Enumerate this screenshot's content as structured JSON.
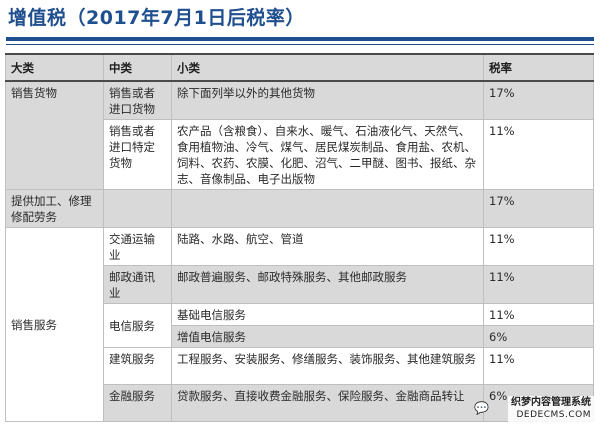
{
  "title": "增值税（2017年7月1日后税率）",
  "table": {
    "headers": [
      "大类",
      "中类",
      "小类",
      "税率"
    ],
    "rows": [
      {
        "major": "销售货物",
        "minor": "销售或者进口货物",
        "sub": "除下面列举以外的其他货物",
        "rate": "17%"
      },
      {
        "minor": "销售或者进口特定货物",
        "sub": "农产品（含粮食）、自来水、暖气、石油液化气、天然气、食用植物油、冷气、煤气、居民煤炭制品、食用盐、农机、饲料、农药、农膜、化肥、沼气、二甲醚、图书、报纸、杂志、音像制品、电子出版物",
        "rate": "11%"
      },
      {
        "major": "提供加工、修理修配劳务",
        "minor": "",
        "sub": "",
        "rate": "17%"
      },
      {
        "major": "销售服务",
        "minor": "交通运输业",
        "sub": "陆路、水路、航空、管道",
        "rate": "11%"
      },
      {
        "minor": "邮政通讯业",
        "sub": "邮政普遍服务、邮政特殊服务、其他邮政服务",
        "rate": "11%"
      },
      {
        "minor": "电信服务",
        "sub": "基础电信服务",
        "rate": "11%"
      },
      {
        "sub": "增值电信服务",
        "rate": "6%"
      },
      {
        "minor": "建筑服务",
        "sub": "工程服务、安装服务、修缮服务、装饰服务、其他建筑服务",
        "rate": "11%"
      },
      {
        "minor": "金融服务",
        "sub": "贷款服务、直接收费金融服务、保险服务、金融商品转让",
        "rate": "6%"
      }
    ]
  },
  "watermark": {
    "line1": "织梦内容管理系统",
    "line2": "DEDECMS.COM"
  },
  "colors": {
    "title": "#1f4f8f",
    "shade": "#d9d9d9",
    "border": "#bfbfbf"
  }
}
